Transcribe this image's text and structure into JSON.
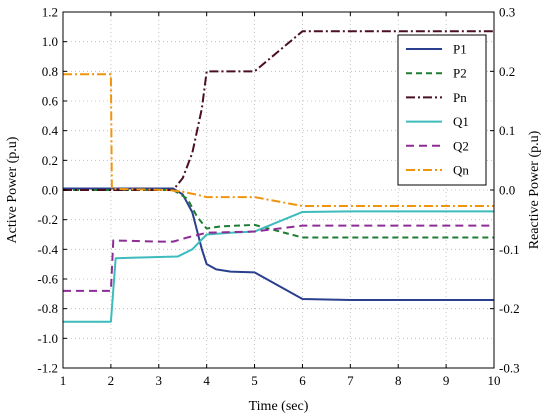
{
  "chart_data": {
    "type": "line",
    "xlabel": "Time (sec)",
    "ylabel_left": "Active Power (p.u)",
    "ylabel_right": "Reactive Power (p.u)",
    "xlim": [
      1,
      10
    ],
    "ylim_left": [
      -1.2,
      1.2
    ],
    "ylim_right": [
      -0.3,
      0.3
    ],
    "grid": true,
    "legend_position": "top-right",
    "x_ticks": [
      "1",
      "2",
      "3",
      "4",
      "5",
      "6",
      "7",
      "8",
      "9",
      "10"
    ],
    "y_left_ticks": [
      "1.2",
      "1.0",
      "0.8",
      "0.6",
      "0.4",
      "0.2",
      "0.0",
      "-0.2",
      "-0.4",
      "-0.6",
      "-0.8",
      "-1.0",
      "-1.2"
    ],
    "y_right_ticks": [
      "0.3",
      "0.2",
      "0.1",
      "0.0",
      "-0.1",
      "-0.2",
      "-0.3"
    ],
    "series": [
      {
        "name": "P1",
        "axis": "left",
        "color": "#2b3f8f",
        "dash": "solid",
        "points": [
          [
            1,
            0.01
          ],
          [
            3.3,
            0.01
          ],
          [
            3.5,
            -0.03
          ],
          [
            3.7,
            -0.15
          ],
          [
            3.9,
            -0.4
          ],
          [
            4,
            -0.5
          ],
          [
            4.2,
            -0.535
          ],
          [
            4.5,
            -0.55
          ],
          [
            5,
            -0.555
          ],
          [
            6,
            -0.735
          ],
          [
            7,
            -0.742
          ],
          [
            10,
            -0.742
          ]
        ]
      },
      {
        "name": "P2",
        "axis": "left",
        "color": "#1e7d32",
        "dash": "6,4",
        "points": [
          [
            1,
            0.0
          ],
          [
            3.3,
            0.0
          ],
          [
            3.6,
            -0.06
          ],
          [
            3.8,
            -0.18
          ],
          [
            4,
            -0.26
          ],
          [
            4.3,
            -0.245
          ],
          [
            5,
            -0.235
          ],
          [
            6,
            -0.32
          ],
          [
            7,
            -0.32
          ],
          [
            10,
            -0.32
          ]
        ]
      },
      {
        "name": "Pn",
        "axis": "left",
        "color": "#4a1020",
        "dash": "9,3,2,3",
        "points": [
          [
            1,
            0.0
          ],
          [
            3.3,
            0.0
          ],
          [
            3.5,
            0.08
          ],
          [
            3.7,
            0.25
          ],
          [
            3.9,
            0.55
          ],
          [
            4,
            0.8
          ],
          [
            5,
            0.8
          ],
          [
            6,
            1.07
          ],
          [
            7,
            1.07
          ],
          [
            10,
            1.07
          ]
        ]
      },
      {
        "name": "Q1",
        "axis": "right",
        "color": "#3cbcbc",
        "dash": "solid",
        "points": [
          [
            1,
            -0.222
          ],
          [
            2,
            -0.222
          ],
          [
            2.1,
            -0.115
          ],
          [
            3,
            -0.113
          ],
          [
            3.4,
            -0.112
          ],
          [
            3.7,
            -0.1
          ],
          [
            4,
            -0.075
          ],
          [
            4.5,
            -0.072
          ],
          [
            5,
            -0.07
          ],
          [
            6,
            -0.037
          ],
          [
            7,
            -0.036
          ],
          [
            10,
            -0.036
          ]
        ]
      },
      {
        "name": "Q2",
        "axis": "right",
        "color": "#8e2c96",
        "dash": "8,5",
        "points": [
          [
            1,
            -0.17
          ],
          [
            2,
            -0.17
          ],
          [
            2.05,
            -0.085
          ],
          [
            3,
            -0.087
          ],
          [
            3.3,
            -0.087
          ],
          [
            3.6,
            -0.08
          ],
          [
            4,
            -0.072
          ],
          [
            5,
            -0.07
          ],
          [
            5.5,
            -0.065
          ],
          [
            6,
            -0.06
          ],
          [
            10,
            -0.06
          ]
        ]
      },
      {
        "name": "Qn",
        "axis": "right",
        "color": "#f0940e",
        "dash": "9,3,2,3",
        "points": [
          [
            1,
            0.195
          ],
          [
            2,
            0.195
          ],
          [
            2.02,
            0.002
          ],
          [
            3.2,
            0.0
          ],
          [
            3.5,
            -0.003
          ],
          [
            3.8,
            -0.008
          ],
          [
            4,
            -0.012
          ],
          [
            5,
            -0.012
          ],
          [
            6,
            -0.027
          ],
          [
            7,
            -0.027
          ],
          [
            10,
            -0.027
          ]
        ]
      }
    ]
  }
}
